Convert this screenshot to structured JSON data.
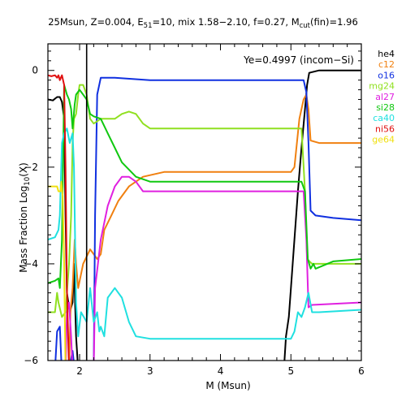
{
  "chart_data": {
    "type": "line",
    "title": {
      "prefix": "25Msun, Z=0.004, E",
      "e_sub": "51",
      "mid": "=10, mix 1.58−2.10, f=0.27, M",
      "m_sub": "cut",
      "suffix": "(fin)=1.96"
    },
    "xlabel": "M (Msun)",
    "ylabel": {
      "prefix": "Mass Fraction Log",
      "sub": "10",
      "suffix": "(X)"
    },
    "annotation": "Ye=0.4997 (incom−Si)",
    "xlim": [
      1.55,
      6.0
    ],
    "ylim": [
      -6.0,
      0.55
    ],
    "x_ticks": [
      2,
      3,
      4,
      5,
      6
    ],
    "y_ticks": [
      0,
      -2,
      -4,
      -6
    ],
    "y_tick_labels": [
      "0",
      "−2",
      "−4",
      "−6"
    ],
    "mcut": 2.1,
    "grid": false,
    "legend_position": "right-outside",
    "series": [
      {
        "name": "he4",
        "color": "#000000",
        "points": [
          [
            1.55,
            -0.6
          ],
          [
            1.62,
            -0.62
          ],
          [
            1.68,
            -0.55
          ],
          [
            1.72,
            -0.55
          ],
          [
            1.75,
            -0.65
          ],
          [
            1.78,
            -1.0
          ],
          [
            1.8,
            -3.0
          ],
          [
            1.82,
            -4.6
          ],
          [
            1.84,
            -4.8
          ],
          [
            1.86,
            -5.0
          ],
          [
            1.9,
            -4.8
          ],
          [
            1.92,
            -4.0
          ],
          [
            1.95,
            -5.5
          ],
          [
            1.98,
            -6.2
          ],
          [
            4.9,
            -6.2
          ],
          [
            4.93,
            -5.5
          ],
          [
            4.97,
            -5.1
          ],
          [
            5.0,
            -4.5
          ],
          [
            5.05,
            -3.5
          ],
          [
            5.1,
            -2.5
          ],
          [
            5.15,
            -1.6
          ],
          [
            5.2,
            -0.8
          ],
          [
            5.23,
            -0.3
          ],
          [
            5.26,
            -0.05
          ],
          [
            5.4,
            0.0
          ],
          [
            6.0,
            0.0
          ]
        ]
      },
      {
        "name": "c12",
        "color": "#f08010",
        "points": [
          [
            1.55,
            -6.2
          ],
          [
            1.85,
            -6.2
          ],
          [
            1.87,
            -5.0
          ],
          [
            1.9,
            -4.5
          ],
          [
            1.93,
            -3.5
          ],
          [
            1.95,
            -4.0
          ],
          [
            1.98,
            -4.5
          ],
          [
            2.05,
            -4.0
          ],
          [
            2.15,
            -3.7
          ],
          [
            2.2,
            -3.8
          ],
          [
            2.25,
            -3.9
          ],
          [
            2.3,
            -3.8
          ],
          [
            2.35,
            -3.3
          ],
          [
            2.45,
            -3.0
          ],
          [
            2.55,
            -2.7
          ],
          [
            2.7,
            -2.4
          ],
          [
            2.9,
            -2.2
          ],
          [
            3.2,
            -2.1
          ],
          [
            4.5,
            -2.1
          ],
          [
            5.0,
            -2.1
          ],
          [
            5.05,
            -2.0
          ],
          [
            5.12,
            -1.0
          ],
          [
            5.18,
            -0.6
          ],
          [
            5.22,
            -0.5
          ],
          [
            5.25,
            -0.8
          ],
          [
            5.28,
            -1.45
          ],
          [
            5.4,
            -1.5
          ],
          [
            6.0,
            -1.5
          ]
        ]
      },
      {
        "name": "o16",
        "color": "#1030e0",
        "points": [
          [
            1.55,
            -6.2
          ],
          [
            1.65,
            -6.2
          ],
          [
            1.68,
            -5.4
          ],
          [
            1.72,
            -5.3
          ],
          [
            1.74,
            -6.0
          ],
          [
            1.78,
            -6.2
          ],
          [
            1.85,
            -6.2
          ],
          [
            1.9,
            -5.8
          ],
          [
            1.93,
            -6.2
          ],
          [
            2.2,
            -6.2
          ],
          [
            2.22,
            -3.0
          ],
          [
            2.25,
            -0.5
          ],
          [
            2.3,
            -0.15
          ],
          [
            2.5,
            -0.15
          ],
          [
            3.0,
            -0.2
          ],
          [
            5.1,
            -0.2
          ],
          [
            5.18,
            -0.2
          ],
          [
            5.22,
            -0.45
          ],
          [
            5.25,
            -1.5
          ],
          [
            5.28,
            -2.9
          ],
          [
            5.35,
            -3.0
          ],
          [
            5.6,
            -3.05
          ],
          [
            6.0,
            -3.1
          ]
        ]
      },
      {
        "name": "mg24",
        "color": "#90e020",
        "points": [
          [
            1.55,
            -5.0
          ],
          [
            1.65,
            -5.0
          ],
          [
            1.68,
            -4.6
          ],
          [
            1.7,
            -4.8
          ],
          [
            1.75,
            -5.1
          ],
          [
            1.8,
            -5.0
          ],
          [
            1.85,
            -4.0
          ],
          [
            1.88,
            -3.0
          ],
          [
            1.9,
            -1.5
          ],
          [
            1.92,
            -1.0
          ],
          [
            1.95,
            -0.9
          ],
          [
            1.98,
            -0.5
          ],
          [
            2.0,
            -0.3
          ],
          [
            2.05,
            -0.3
          ],
          [
            2.1,
            -0.5
          ],
          [
            2.15,
            -1.0
          ],
          [
            2.2,
            -1.1
          ],
          [
            2.3,
            -1.0
          ],
          [
            2.5,
            -1.0
          ],
          [
            2.6,
            -0.9
          ],
          [
            2.7,
            -0.85
          ],
          [
            2.8,
            -0.9
          ],
          [
            2.9,
            -1.1
          ],
          [
            3.0,
            -1.2
          ],
          [
            5.0,
            -1.2
          ],
          [
            5.05,
            -1.2
          ],
          [
            5.15,
            -1.2
          ],
          [
            5.2,
            -2.5
          ],
          [
            5.23,
            -3.9
          ],
          [
            5.3,
            -4.0
          ],
          [
            6.0,
            -4.0
          ]
        ]
      },
      {
        "name": "al27",
        "color": "#e020e0",
        "points": [
          [
            1.55,
            -6.2
          ],
          [
            1.8,
            -6.2
          ],
          [
            1.82,
            -5.0
          ],
          [
            1.85,
            -4.8
          ],
          [
            1.88,
            -5.5
          ],
          [
            1.9,
            -6.2
          ],
          [
            2.2,
            -6.2
          ],
          [
            2.22,
            -4.5
          ],
          [
            2.3,
            -3.5
          ],
          [
            2.4,
            -2.8
          ],
          [
            2.5,
            -2.4
          ],
          [
            2.6,
            -2.2
          ],
          [
            2.7,
            -2.2
          ],
          [
            2.8,
            -2.3
          ],
          [
            2.9,
            -2.5
          ],
          [
            3.0,
            -2.5
          ],
          [
            5.1,
            -2.5
          ],
          [
            5.18,
            -2.5
          ],
          [
            5.22,
            -3.5
          ],
          [
            5.25,
            -4.9
          ],
          [
            5.3,
            -4.85
          ],
          [
            6.0,
            -4.8
          ]
        ]
      },
      {
        "name": "si28",
        "color": "#10c810",
        "points": [
          [
            1.55,
            -4.4
          ],
          [
            1.65,
            -4.35
          ],
          [
            1.7,
            -4.3
          ],
          [
            1.72,
            -4.5
          ],
          [
            1.75,
            -3.5
          ],
          [
            1.78,
            -0.3
          ],
          [
            1.82,
            -0.5
          ],
          [
            1.85,
            -0.6
          ],
          [
            1.88,
            -0.8
          ],
          [
            1.9,
            -1.2
          ],
          [
            1.93,
            -0.7
          ],
          [
            1.95,
            -0.5
          ],
          [
            2.0,
            -0.4
          ],
          [
            2.05,
            -0.5
          ],
          [
            2.1,
            -0.6
          ],
          [
            2.15,
            -0.9
          ],
          [
            2.2,
            -0.95
          ],
          [
            2.3,
            -1.0
          ],
          [
            2.4,
            -1.3
          ],
          [
            2.5,
            -1.6
          ],
          [
            2.6,
            -1.9
          ],
          [
            2.8,
            -2.2
          ],
          [
            3.0,
            -2.3
          ],
          [
            5.1,
            -2.3
          ],
          [
            5.15,
            -2.3
          ],
          [
            5.2,
            -2.5
          ],
          [
            5.24,
            -3.9
          ],
          [
            5.28,
            -4.1
          ],
          [
            5.32,
            -4.0
          ],
          [
            5.35,
            -4.1
          ],
          [
            5.6,
            -3.95
          ],
          [
            6.0,
            -3.9
          ]
        ]
      },
      {
        "name": "ca40",
        "color": "#20e0e0",
        "points": [
          [
            1.55,
            -3.5
          ],
          [
            1.65,
            -3.45
          ],
          [
            1.7,
            -3.3
          ],
          [
            1.72,
            -3.0
          ],
          [
            1.75,
            -1.5
          ],
          [
            1.78,
            -1.3
          ],
          [
            1.82,
            -1.2
          ],
          [
            1.86,
            -1.5
          ],
          [
            1.9,
            -1.3
          ],
          [
            1.92,
            -2.0
          ],
          [
            1.95,
            -4.8
          ],
          [
            1.98,
            -5.5
          ],
          [
            2.02,
            -5.0
          ],
          [
            2.1,
            -5.2
          ],
          [
            2.15,
            -4.5
          ],
          [
            2.2,
            -5.2
          ],
          [
            2.25,
            -5.0
          ],
          [
            2.28,
            -5.4
          ],
          [
            2.3,
            -5.3
          ],
          [
            2.35,
            -5.5
          ],
          [
            2.4,
            -4.7
          ],
          [
            2.5,
            -4.5
          ],
          [
            2.6,
            -4.7
          ],
          [
            2.7,
            -5.2
          ],
          [
            2.8,
            -5.5
          ],
          [
            3.0,
            -5.55
          ],
          [
            5.0,
            -5.55
          ],
          [
            5.05,
            -5.4
          ],
          [
            5.1,
            -5.0
          ],
          [
            5.15,
            -5.1
          ],
          [
            5.2,
            -4.9
          ],
          [
            5.25,
            -4.6
          ],
          [
            5.3,
            -5.0
          ],
          [
            5.4,
            -5.0
          ],
          [
            6.0,
            -4.95
          ]
        ]
      },
      {
        "name": "ni56",
        "color": "#e01010",
        "points": [
          [
            1.55,
            -0.1
          ],
          [
            1.6,
            -0.12
          ],
          [
            1.65,
            -0.1
          ],
          [
            1.68,
            -0.15
          ],
          [
            1.7,
            -0.1
          ],
          [
            1.72,
            -0.2
          ],
          [
            1.75,
            -0.1
          ],
          [
            1.78,
            -0.3
          ],
          [
            1.8,
            -2.0
          ],
          [
            1.82,
            -4.5
          ],
          [
            1.85,
            -6.2
          ],
          [
            2.2,
            -6.2
          ]
        ]
      },
      {
        "name": "ge64",
        "color": "#f0e010",
        "points": [
          [
            1.55,
            -2.4
          ],
          [
            1.68,
            -2.4
          ],
          [
            1.7,
            -2.5
          ],
          [
            1.73,
            -2.5
          ],
          [
            1.74,
            -2.3
          ],
          [
            1.76,
            -2.6
          ],
          [
            1.78,
            -4.0
          ],
          [
            1.8,
            -6.2
          ]
        ]
      }
    ]
  }
}
